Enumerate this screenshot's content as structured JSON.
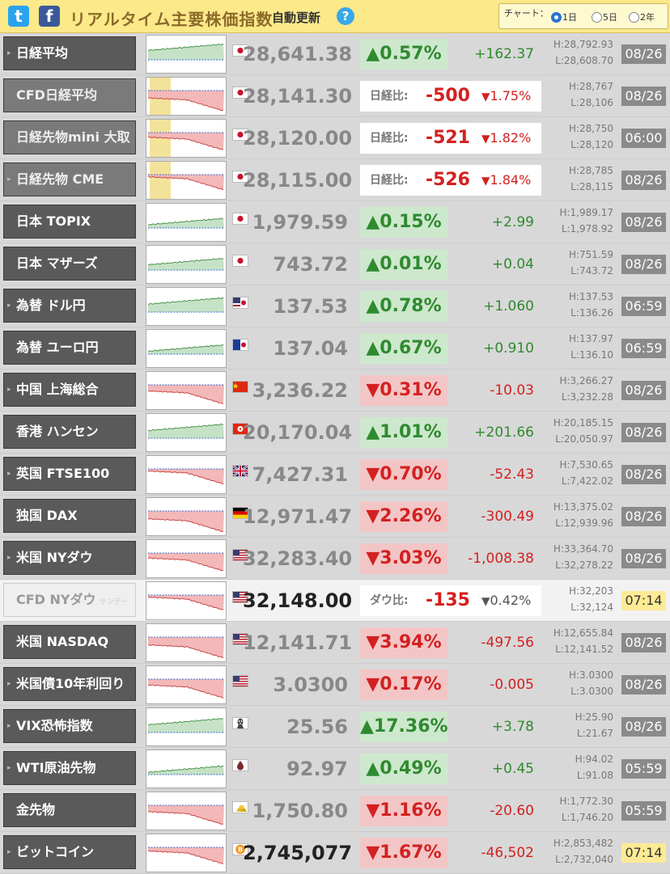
{
  "header": {
    "twitter_icon": "t",
    "facebook_icon": "f",
    "title": "リアルタイム主要株価指数",
    "auto_update": "自動更新",
    "help": "?",
    "chart_label": "チャート：",
    "options": [
      "1日",
      "5日",
      "2年"
    ],
    "selected": "1日"
  },
  "colors": {
    "up": "#2f8a2f",
    "down": "#d42020",
    "header_bg": "#fbe98a",
    "row_name_bg": "#5a5a5a"
  },
  "rows": [
    {
      "name": "日経平均",
      "arrow": true,
      "flag": "jp-flag",
      "price": "28,641.38",
      "pct": "0.57%",
      "dir": "up",
      "chg": "+162.37",
      "high": "H:28,792.93",
      "low": "L:28,608.70",
      "date": "08/26"
    },
    {
      "name": "CFD日経平均",
      "cfd": true,
      "flag": "jp-flag",
      "price": "28,141.30",
      "cmp_label": "日経比:",
      "diff": "-500",
      "diff_pct": "1.75%",
      "high": "H:28,767",
      "low": "L:28,106",
      "date": "08/26"
    },
    {
      "name": "日経先物mini 大取",
      "cfd": true,
      "flag": "jp-flag",
      "price": "28,120.00",
      "cmp_label": "日経比:",
      "diff": "-521",
      "diff_pct": "1.82%",
      "high": "H:28,750",
      "low": "L:28,120",
      "date": "06:00"
    },
    {
      "name": "日経先物 CME",
      "arrow": true,
      "cfd": true,
      "flag": "jp-flag",
      "price": "28,115.00",
      "cmp_label": "日経比:",
      "diff": "-526",
      "diff_pct": "1.84%",
      "high": "H:28,785",
      "low": "L:28,115",
      "date": "08/26"
    },
    {
      "name": "日本 TOPIX",
      "flag": "jp-flag",
      "price": "1,979.59",
      "pct": "0.15%",
      "dir": "up",
      "chg": "+2.99",
      "high": "H:1,989.17",
      "low": "L:1,978.92",
      "date": "08/26"
    },
    {
      "name": "日本 マザーズ",
      "flag": "jp-flag",
      "price": "743.72",
      "pct": "0.01%",
      "dir": "up",
      "chg": "+0.04",
      "high": "H:751.59",
      "low": "L:743.72",
      "date": "08/26"
    },
    {
      "name": "為替 ドル円",
      "arrow": true,
      "flag": "us-jp-flag",
      "price": "137.53",
      "pct": "0.78%",
      "dir": "up",
      "chg": "+1.060",
      "high": "H:137.53",
      "low": "L:136.26",
      "date": "06:59"
    },
    {
      "name": "為替 ユーロ円",
      "flag": "eu-jp-flag",
      "price": "137.04",
      "pct": "0.67%",
      "dir": "up",
      "chg": "+0.910",
      "high": "H:137.97",
      "low": "L:136.10",
      "date": "06:59"
    },
    {
      "name": "中国 上海総合",
      "arrow": true,
      "flag": "cn-flag",
      "price": "3,236.22",
      "pct": "0.31%",
      "dir": "dn",
      "chg": "-10.03",
      "high": "H:3,266.27",
      "low": "L:3,232.28",
      "date": "08/26"
    },
    {
      "name": "香港 ハンセン",
      "flag": "hk-flag",
      "price": "20,170.04",
      "pct": "1.01%",
      "dir": "up",
      "chg": "+201.66",
      "high": "H:20,185.15",
      "low": "L:20,050.97",
      "date": "08/26"
    },
    {
      "name": "英国 FTSE100",
      "arrow": true,
      "flag": "uk-flag",
      "price": "7,427.31",
      "pct": "0.70%",
      "dir": "dn",
      "chg": "-52.43",
      "high": "H:7,530.65",
      "low": "L:7,422.02",
      "date": "08/26"
    },
    {
      "name": "独国 DAX",
      "flag": "de-flag",
      "price": "12,971.47",
      "pct": "2.26%",
      "dir": "dn",
      "chg": "-300.49",
      "high": "H:13,375.02",
      "low": "L:12,939.96",
      "date": "08/26"
    },
    {
      "name": "米国 NYダウ",
      "arrow": true,
      "flag": "us-flag",
      "price": "32,283.40",
      "pct": "3.03%",
      "dir": "dn",
      "chg": "-1,008.38",
      "high": "H:33,364.70",
      "low": "L:32,278.22",
      "date": "08/26"
    },
    {
      "name": "CFD NYダウ",
      "suffix": "サンデー",
      "cfd2": true,
      "flag": "us-flag",
      "price": "32,148.00",
      "price_dark": true,
      "cmp_label": "ダウ比:",
      "diff": "-135",
      "diff_pct": "0.42%",
      "diff_gray": true,
      "high": "H:32,203",
      "low": "L:32,124",
      "date": "07:14",
      "live": true,
      "highlight": true
    },
    {
      "name": "米国 NASDAQ",
      "flag": "us-flag",
      "price": "12,141.71",
      "pct": "3.94%",
      "dir": "dn",
      "chg": "-497.56",
      "high": "H:12,655.84",
      "low": "L:12,141.52",
      "date": "08/26"
    },
    {
      "name": "米国債10年利回り",
      "arrow": true,
      "flag": "us-flag",
      "price": "3.0300",
      "pct": "0.17%",
      "dir": "dn",
      "chg": "-0.005",
      "high": "H:3.0300",
      "low": "L:3.0300",
      "date": "08/26"
    },
    {
      "name": "VIX恐怖指数",
      "arrow": true,
      "flag": "scream-icon",
      "price": "25.56",
      "pct": "17.36%",
      "dir": "up",
      "chg": "+3.78",
      "high": "H:25.90",
      "low": "L:21.67",
      "date": "08/26"
    },
    {
      "name": "WTI原油先物",
      "arrow": true,
      "flag": "oil-drop-icon",
      "price": "92.97",
      "pct": "0.49%",
      "dir": "up",
      "chg": "+0.45",
      "high": "H:94.02",
      "low": "L:91.08",
      "date": "05:59"
    },
    {
      "name": "金先物",
      "flag": "gold-bars-icon",
      "price": "1,750.80",
      "pct": "1.16%",
      "dir": "dn",
      "chg": "-20.60",
      "high": "H:1,772.30",
      "low": "L:1,746.20",
      "date": "05:59"
    },
    {
      "name": "ビットコイン",
      "arrow": true,
      "flag": "bitcoin-icon",
      "price": "2,745,077",
      "price_dark": true,
      "pct": "1.67%",
      "dir": "dn",
      "chg": "-46,502",
      "high": "H:2,853,482",
      "low": "L:2,732,040",
      "date": "07:14",
      "live": true
    }
  ]
}
